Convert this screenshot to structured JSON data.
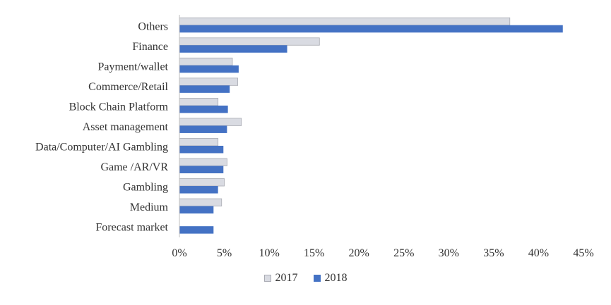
{
  "chart_data": {
    "type": "bar",
    "orientation": "horizontal",
    "categories": [
      "Others",
      "Finance",
      "Payment/wallet",
      "Commerce/Retail",
      "Block Chain Platform",
      "Asset management",
      "Data/Computer/AI Gambling",
      "Game /AR/VR",
      "Gambling",
      "Medium",
      "Forecast market"
    ],
    "series": [
      {
        "name": "2017",
        "values": [
          36.8,
          15.6,
          5.9,
          6.5,
          4.3,
          6.9,
          4.3,
          5.3,
          5.0,
          4.7,
          0.0
        ]
      },
      {
        "name": "2018",
        "values": [
          42.7,
          12.0,
          6.6,
          5.6,
          5.4,
          5.3,
          4.9,
          4.9,
          4.3,
          3.8,
          3.8
        ]
      }
    ],
    "xticks": [
      "0%",
      "5%",
      "10%",
      "15%",
      "20%",
      "25%",
      "30%",
      "35%",
      "40%",
      "45%"
    ],
    "xlim": [
      0,
      45
    ],
    "unit": "%",
    "grid": false,
    "legend_position": "bottom",
    "colors": {
      "2017": "#d9dbe2",
      "2018": "#4472c4",
      "2017_border": "#a9abb3"
    }
  }
}
